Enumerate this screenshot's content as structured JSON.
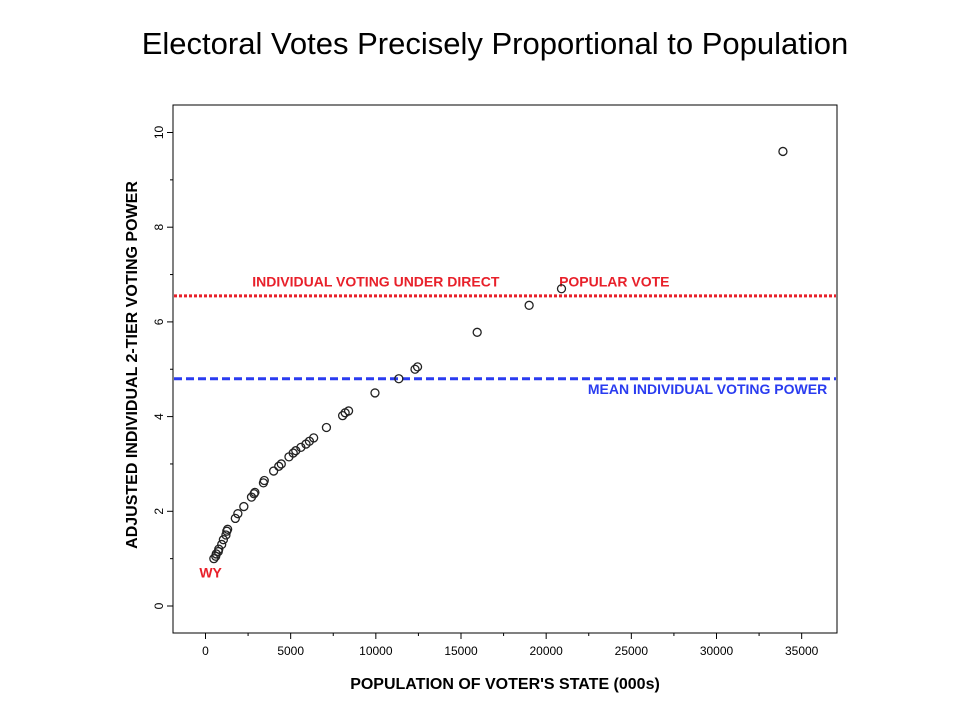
{
  "title": "Electoral Votes Precisely Proportional to Population",
  "chart_data": {
    "type": "scatter",
    "xlabel": "POPULATION OF VOTER'S STATE (000s)",
    "ylabel": "ADJUSTED INDIVIDUAL 2-TIER VOTING POWER",
    "xlim": [
      -2000,
      37000
    ],
    "ylim": [
      -0.55,
      10.65
    ],
    "xticks": [
      0,
      5000,
      10000,
      15000,
      20000,
      25000,
      30000,
      35000
    ],
    "yticks": [
      0,
      2,
      4,
      6,
      8,
      10
    ],
    "grid": false,
    "series": [
      {
        "points": [
          [
            490,
            1.0
          ],
          [
            600,
            1.05
          ],
          [
            630,
            1.1
          ],
          [
            750,
            1.15
          ],
          [
            780,
            1.2
          ],
          [
            950,
            1.3
          ],
          [
            1050,
            1.4
          ],
          [
            1200,
            1.5
          ],
          [
            1250,
            1.58
          ],
          [
            1300,
            1.62
          ],
          [
            1750,
            1.85
          ],
          [
            1900,
            1.95
          ],
          [
            2250,
            2.1
          ],
          [
            2700,
            2.3
          ],
          [
            2850,
            2.37
          ],
          [
            2900,
            2.4
          ],
          [
            3400,
            2.6
          ],
          [
            3450,
            2.65
          ],
          [
            4000,
            2.85
          ],
          [
            4300,
            2.95
          ],
          [
            4450,
            3.0
          ],
          [
            4900,
            3.15
          ],
          [
            5150,
            3.23
          ],
          [
            5300,
            3.28
          ],
          [
            5600,
            3.35
          ],
          [
            5900,
            3.42
          ],
          [
            6100,
            3.48
          ],
          [
            6350,
            3.55
          ],
          [
            7100,
            3.77
          ],
          [
            8050,
            4.02
          ],
          [
            8200,
            4.08
          ],
          [
            8400,
            4.12
          ],
          [
            9950,
            4.5
          ],
          [
            11350,
            4.8
          ],
          [
            12300,
            5.0
          ],
          [
            12450,
            5.05
          ],
          [
            15950,
            5.78
          ],
          [
            19000,
            6.35
          ],
          [
            20900,
            6.7
          ],
          [
            33900,
            9.6
          ]
        ]
      }
    ],
    "reference_lines": [
      {
        "y": 6.55,
        "color": "#e8202a",
        "style": "dotted"
      },
      {
        "y": 4.8,
        "color": "#2a3cf0",
        "style": "dashed"
      }
    ],
    "annotations": [
      {
        "text": "INDIVIDUAL VOTING UNDER DIRECT",
        "color": "#e8202a",
        "x": 10000,
        "y": 6.75,
        "anchor": "middle"
      },
      {
        "text": "POPULAR VOTE",
        "color": "#e8202a",
        "x": 24000,
        "y": 6.75,
        "anchor": "middle"
      },
      {
        "text": "MEAN INDIVIDUAL VOTING POWER",
        "color": "#2a3cf0",
        "x": 36500,
        "y": 4.48,
        "anchor": "end"
      },
      {
        "text": "WY",
        "color": "#e8202a",
        "x": 300,
        "y": 0.6,
        "anchor": "middle"
      }
    ]
  }
}
